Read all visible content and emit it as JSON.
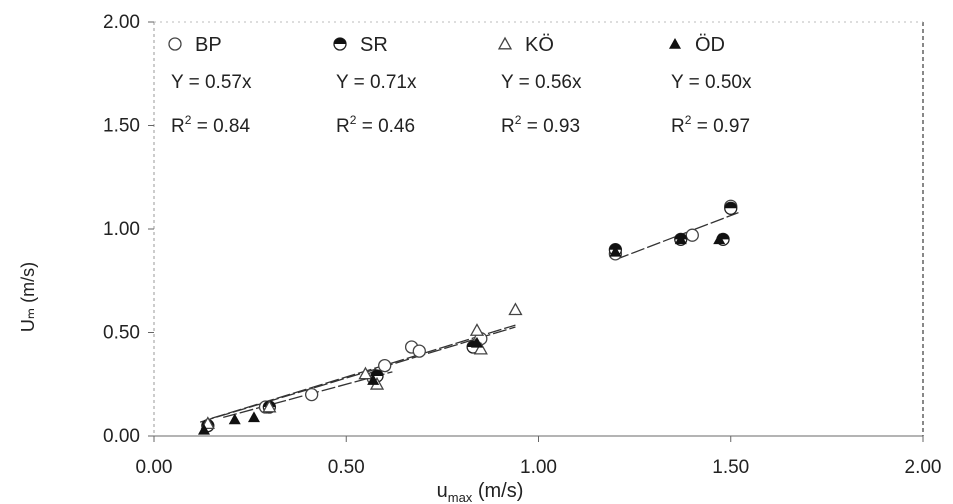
{
  "chart_data": {
    "type": "scatter",
    "xlabel": "u",
    "xlabel_sub": "max",
    "xlabel_unit": " (m/s)",
    "ylabel": "Uₘ (m/s)",
    "xlim": [
      0,
      2
    ],
    "ylim": [
      0,
      2
    ],
    "x_ticks": [
      "0.00",
      "0.50",
      "1.00",
      "1.50",
      "2.00"
    ],
    "y_ticks": [
      "0.00",
      "0.50",
      "1.00",
      "1.50",
      "2.00"
    ],
    "x_tick_values": [
      0,
      0.5,
      1,
      1.5,
      2
    ],
    "y_tick_values": [
      0,
      0.5,
      1,
      1.5,
      2
    ],
    "grid": false,
    "legend_position": "top",
    "series": [
      {
        "name": "BP",
        "marker": "circle-open",
        "equation": "Y = 0.57x",
        "r2_label": "R",
        "r2_sup": "2",
        "r2_value": " = 0.84",
        "points": [
          [
            0.29,
            0.14
          ],
          [
            0.41,
            0.2
          ],
          [
            0.57,
            0.28
          ],
          [
            0.6,
            0.34
          ],
          [
            0.67,
            0.43
          ],
          [
            0.69,
            0.41
          ],
          [
            0.85,
            0.47
          ],
          [
            1.2,
            0.88
          ],
          [
            1.4,
            0.97
          ],
          [
            1.5,
            1.11
          ]
        ],
        "fit": {
          "slope": 0.57,
          "x_range": [
            0.15,
            0.94
          ]
        }
      },
      {
        "name": "SR",
        "marker": "circle-half",
        "equation": "Y = 0.71x",
        "r2_label": "R",
        "r2_sup": "2",
        "r2_value": " = 0.46",
        "points": [
          [
            0.14,
            0.05
          ],
          [
            0.3,
            0.14
          ],
          [
            0.58,
            0.29
          ],
          [
            0.83,
            0.43
          ],
          [
            1.2,
            0.9
          ],
          [
            1.37,
            0.95
          ],
          [
            1.48,
            0.95
          ],
          [
            1.5,
            1.1
          ]
        ],
        "fit": {
          "slope": 0.71,
          "x_range": [
            1.2,
            1.52
          ]
        }
      },
      {
        "name": "KÖ",
        "marker": "triangle-open",
        "equation": "Y = 0.56x",
        "r2_label": "R",
        "r2_sup": "2",
        "r2_value": " = 0.93",
        "points": [
          [
            0.14,
            0.06
          ],
          [
            0.3,
            0.14
          ],
          [
            0.55,
            0.3
          ],
          [
            0.58,
            0.25
          ],
          [
            0.84,
            0.51
          ],
          [
            0.85,
            0.42
          ],
          [
            0.94,
            0.61
          ]
        ],
        "fit": {
          "slope": 0.56,
          "x_range": [
            0.12,
            0.94
          ]
        }
      },
      {
        "name": "ÖD",
        "marker": "triangle-filled",
        "equation": "Y = 0.50x",
        "r2_label": "R",
        "r2_sup": "2",
        "r2_value": " = 0.97",
        "points": [
          [
            0.13,
            0.03
          ],
          [
            0.21,
            0.08
          ],
          [
            0.26,
            0.09
          ],
          [
            0.57,
            0.27
          ],
          [
            0.84,
            0.45
          ],
          [
            1.2,
            0.89
          ],
          [
            1.37,
            0.95
          ],
          [
            1.47,
            0.95
          ]
        ],
        "fit": {
          "slope": 0.5,
          "x_range": [
            0.18,
            0.62
          ]
        }
      }
    ]
  }
}
